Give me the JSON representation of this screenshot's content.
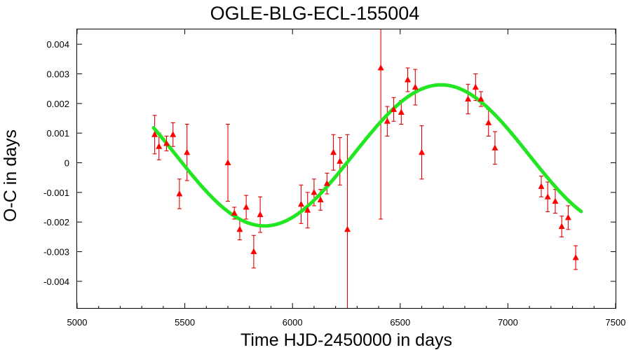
{
  "chart_data": {
    "type": "scatter",
    "title": "OGLE-BLG-ECL-155004",
    "xlabel": "Time HJD-2450000 in days",
    "ylabel": "O-C in days",
    "xlim": [
      5000,
      7500
    ],
    "ylim": [
      -0.0049,
      0.0045
    ],
    "xticks": [
      5000,
      5500,
      6000,
      6500,
      7000,
      7500
    ],
    "xtick_labels": [
      "5000",
      "5500",
      "6000",
      "6500",
      "7000",
      "7500"
    ],
    "yticks": [
      0.004,
      0.003,
      0.002,
      0.001,
      0,
      -0.001,
      -0.002,
      -0.003,
      -0.004
    ],
    "ytick_labels": [
      "0.004",
      "0.003",
      "0.002",
      "0.001",
      "0",
      "-0.001",
      "-0.002",
      "-0.003",
      "-0.004"
    ],
    "grid": false,
    "legend": "none",
    "marker": "triangle",
    "marker_color": "#ff0000",
    "fit_color": "#22e622",
    "points": [
      {
        "x": 5360,
        "y": 0.00095,
        "err": 0.00065
      },
      {
        "x": 5380,
        "y": 0.00055,
        "err": 0.00045
      },
      {
        "x": 5415,
        "y": 0.00065,
        "err": 0.00025
      },
      {
        "x": 5445,
        "y": 0.00095,
        "err": 0.0004
      },
      {
        "x": 5475,
        "y": -0.00105,
        "err": 0.0005
      },
      {
        "x": 5510,
        "y": 0.00035,
        "err": 0.00095
      },
      {
        "x": 5700,
        "y": 0.0,
        "err": 0.0013
      },
      {
        "x": 5730,
        "y": -0.0017,
        "err": 0.0002
      },
      {
        "x": 5755,
        "y": -0.00225,
        "err": 0.00035
      },
      {
        "x": 5785,
        "y": -0.0015,
        "err": 0.0004
      },
      {
        "x": 5820,
        "y": -0.003,
        "err": 0.00055
      },
      {
        "x": 5850,
        "y": -0.00175,
        "err": 0.0006
      },
      {
        "x": 6040,
        "y": -0.0014,
        "err": 0.00065
      },
      {
        "x": 6070,
        "y": -0.0016,
        "err": 0.0006
      },
      {
        "x": 6100,
        "y": -0.001,
        "err": 0.00045
      },
      {
        "x": 6130,
        "y": -0.00125,
        "err": 0.00035
      },
      {
        "x": 6160,
        "y": -0.0007,
        "err": 0.00035
      },
      {
        "x": 6190,
        "y": 0.00035,
        "err": 0.0006
      },
      {
        "x": 6220,
        "y": 5e-05,
        "err": 0.0008
      },
      {
        "x": 6255,
        "y": -0.00225,
        "err": 0.0032
      },
      {
        "x": 6410,
        "y": 0.0032,
        "err": 0.0051
      },
      {
        "x": 6440,
        "y": 0.0014,
        "err": 0.0005
      },
      {
        "x": 6470,
        "y": 0.0018,
        "err": 0.0004
      },
      {
        "x": 6505,
        "y": 0.0017,
        "err": 0.0004
      },
      {
        "x": 6535,
        "y": 0.0028,
        "err": 0.0004
      },
      {
        "x": 6570,
        "y": 0.00255,
        "err": 0.0006
      },
      {
        "x": 6600,
        "y": 0.00035,
        "err": 0.0009
      },
      {
        "x": 6815,
        "y": 0.00215,
        "err": 0.0005
      },
      {
        "x": 6850,
        "y": 0.00255,
        "err": 0.00045
      },
      {
        "x": 6875,
        "y": 0.00215,
        "err": 0.00025
      },
      {
        "x": 6910,
        "y": 0.00135,
        "err": 0.00045
      },
      {
        "x": 6940,
        "y": 0.0005,
        "err": 0.00055
      },
      {
        "x": 7155,
        "y": -0.0008,
        "err": 0.00035
      },
      {
        "x": 7185,
        "y": -0.00115,
        "err": 0.0005
      },
      {
        "x": 7220,
        "y": -0.0013,
        "err": 0.0004
      },
      {
        "x": 7250,
        "y": -0.00215,
        "err": 0.00035
      },
      {
        "x": 7280,
        "y": -0.00185,
        "err": 0.0004
      },
      {
        "x": 7315,
        "y": -0.0032,
        "err": 0.0004
      }
    ],
    "fit": {
      "type": "sinusoid",
      "amplitude": 0.00238,
      "period": 1640,
      "offset": 0.00025,
      "phase_peak_x": 6690,
      "x_range": [
        5355,
        7340
      ]
    }
  }
}
